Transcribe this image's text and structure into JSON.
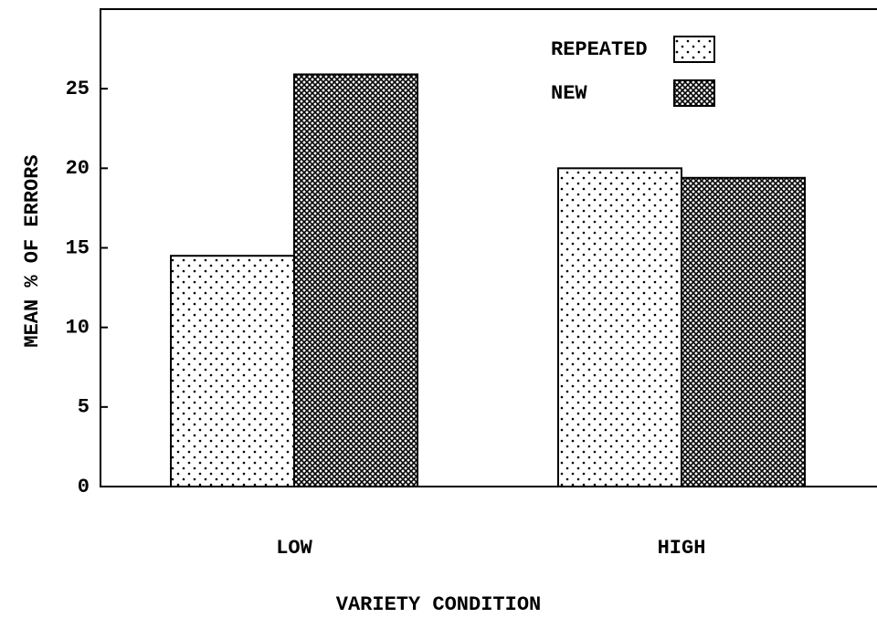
{
  "chart_data": {
    "type": "bar",
    "xlabel": "VARIETY CONDITION",
    "ylabel": "MEAN % OF ERRORS",
    "categories": [
      "LOW",
      "HIGH"
    ],
    "series": [
      {
        "name": "REPEATED",
        "color": "#000000",
        "pattern": "dots",
        "values": [
          14.5,
          20.0
        ]
      },
      {
        "name": "NEW",
        "color": "#000000",
        "pattern": "crosshatch",
        "values": [
          25.9,
          19.4
        ]
      }
    ],
    "ylim": [
      0,
      30
    ],
    "yticks": [
      0,
      5,
      10,
      15,
      20,
      25
    ],
    "legend": "upper right"
  }
}
